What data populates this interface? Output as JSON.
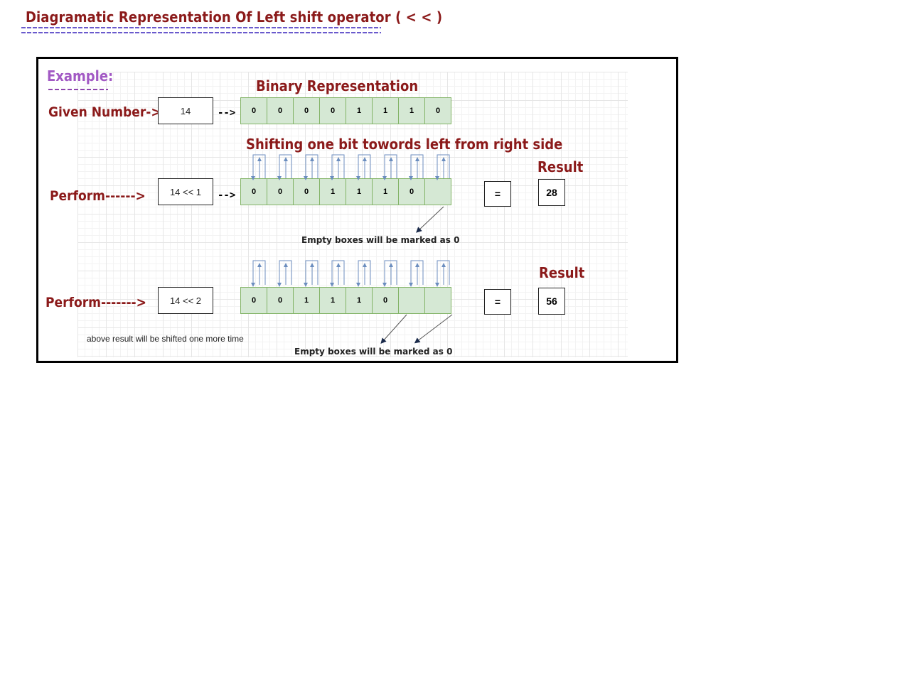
{
  "title": "Diagramatic Representation Of Left shift operator ( < < )",
  "example_label": "Example:",
  "binary_heading": "Binary Representation",
  "shift_heading": "Shifting one bit towords left from right side",
  "rows": [
    {
      "label": "Given Number->",
      "expr": "14",
      "arrow": "-->",
      "bits": [
        "0",
        "0",
        "0",
        "0",
        "1",
        "1",
        "1",
        "0"
      ]
    },
    {
      "label": "Perform------>",
      "expr": "14 << 1",
      "arrow": "-->",
      "bits": [
        "0",
        "0",
        "0",
        "1",
        "1",
        "1",
        "0",
        ""
      ],
      "equals": "=",
      "result_label": "Result",
      "result": "28",
      "note": "Empty boxes will be marked as 0"
    },
    {
      "label": "Perform------->",
      "expr": "14 << 2",
      "bits": [
        "0",
        "0",
        "1",
        "1",
        "1",
        "0",
        "",
        ""
      ],
      "equals": "=",
      "result_label": "Result",
      "result": "56",
      "note": "Empty boxes will be marked as 0",
      "side_note": "above result will be shifted one more time"
    }
  ],
  "colors": {
    "title": "#8b1a1a",
    "example": "#a259c4",
    "cell_fill": "#d5e8d4",
    "cell_border": "#82b366",
    "arrow": "#6c8ebf"
  }
}
